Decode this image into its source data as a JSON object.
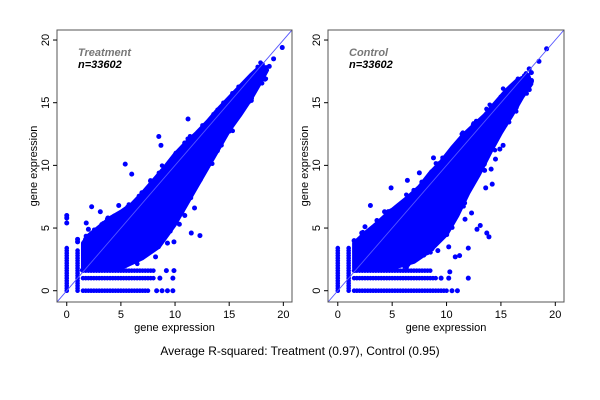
{
  "chart_data": [
    {
      "type": "scatter",
      "group_label": "Treatment",
      "n_label": "n=33602",
      "xlabel": "gene expression",
      "ylabel": "gene expression",
      "xlim": [
        -0.9,
        20.8
      ],
      "ylim": [
        -0.9,
        20.8
      ],
      "xticks": [
        0,
        5,
        10,
        15,
        20
      ],
      "yticks": [
        0,
        5,
        10,
        15,
        20
      ],
      "reference_line": "y = x",
      "point_color": "#0000ff",
      "line_color": "#5555ff",
      "dense_region": [
        [
          1.5,
          1.8
        ],
        [
          5,
          1.8
        ],
        [
          7,
          2.6
        ],
        [
          8.5,
          3.5
        ],
        [
          10,
          5.3
        ],
        [
          11,
          6.8
        ],
        [
          12,
          8.3
        ],
        [
          13,
          9.8
        ],
        [
          14,
          11.3
        ],
        [
          15,
          12.8
        ],
        [
          16,
          14
        ],
        [
          17,
          15.3
        ],
        [
          18,
          16.8
        ],
        [
          18.5,
          17.6
        ],
        [
          18,
          18
        ],
        [
          17,
          17.2
        ],
        [
          16,
          16.3
        ],
        [
          15,
          15.4
        ],
        [
          14,
          14.5
        ],
        [
          13,
          13.5
        ],
        [
          12,
          12.6
        ],
        [
          11,
          11.8
        ],
        [
          10,
          10.9
        ],
        [
          9,
          9.8
        ],
        [
          8,
          8.8
        ],
        [
          7,
          7.8
        ],
        [
          6,
          6.9
        ],
        [
          5,
          6.3
        ],
        [
          4,
          5.8
        ],
        [
          3,
          5.1
        ],
        [
          2,
          4.4
        ],
        [
          1.5,
          3.8
        ]
      ],
      "floor_rows": [
        {
          "y": 0,
          "x_from": 1.5,
          "x_to": 7.6
        },
        {
          "y": 1.0,
          "x_from": 1.5,
          "x_to": 8.0
        },
        {
          "y": 1.6,
          "x_from": 1.5,
          "x_to": 8.0
        }
      ],
      "columns": [
        {
          "x": 0,
          "y_from": 0,
          "y_to": 3.6
        },
        {
          "x": 1,
          "y_from": 0,
          "y_to": 3.4
        }
      ],
      "points": [
        [
          0,
          5.4
        ],
        [
          0,
          5.8
        ],
        [
          0,
          6.0
        ],
        [
          1,
          4.1
        ],
        [
          1,
          3.9
        ],
        [
          1.8,
          5.4
        ],
        [
          2.3,
          6.7
        ],
        [
          2.0,
          4.9
        ],
        [
          3.1,
          6.3
        ],
        [
          3.8,
          5.8
        ],
        [
          4.8,
          6.8
        ],
        [
          5.4,
          10.1
        ],
        [
          6.0,
          9.3
        ],
        [
          8.5,
          12.3
        ],
        [
          8.7,
          11.6
        ],
        [
          11.2,
          13.7
        ],
        [
          12.1,
          9.8
        ],
        [
          12.8,
          10.0
        ],
        [
          11.8,
          6.6
        ],
        [
          12.3,
          4.4
        ],
        [
          11.5,
          4.6
        ],
        [
          10.5,
          7.5
        ],
        [
          10.9,
          6.0
        ],
        [
          10.4,
          5.3
        ],
        [
          9.6,
          8.0
        ],
        [
          9.3,
          6.6
        ],
        [
          8.9,
          4.9
        ],
        [
          9.3,
          3.8
        ],
        [
          9.9,
          3.9
        ],
        [
          8.2,
          2.7
        ],
        [
          9.2,
          1.6
        ],
        [
          9.9,
          1.6
        ],
        [
          9.8,
          1.0
        ],
        [
          8.6,
          1.0
        ],
        [
          9.8,
          0
        ],
        [
          9.3,
          0
        ],
        [
          8.8,
          0
        ],
        [
          8.3,
          0
        ],
        [
          15.8,
          14.2
        ],
        [
          16.5,
          15.2
        ],
        [
          17.0,
          15.8
        ],
        [
          17.6,
          17.0
        ],
        [
          18.4,
          17.8
        ],
        [
          18.7,
          17.9
        ],
        [
          19.1,
          18.5
        ],
        [
          19.9,
          19.4
        ],
        [
          13.5,
          12.2
        ],
        [
          14.3,
          12.8
        ]
      ]
    },
    {
      "type": "scatter",
      "group_label": "Control",
      "n_label": "n=33602",
      "xlabel": "gene expression",
      "ylabel": "gene expression",
      "xlim": [
        -0.9,
        20.8
      ],
      "ylim": [
        -0.9,
        20.8
      ],
      "xticks": [
        0,
        5,
        10,
        15,
        20
      ],
      "yticks": [
        0,
        5,
        10,
        15,
        20
      ],
      "reference_line": "y = x",
      "point_color": "#0000ff",
      "line_color": "#5555ff",
      "dense_region": [
        [
          1.5,
          1.8
        ],
        [
          5,
          1.8
        ],
        [
          7,
          2.3
        ],
        [
          8.5,
          3.2
        ],
        [
          10,
          4.5
        ],
        [
          11,
          6.0
        ],
        [
          12,
          7.8
        ],
        [
          13,
          9.3
        ],
        [
          14,
          11.0
        ],
        [
          15,
          12.6
        ],
        [
          16,
          14.0
        ],
        [
          17,
          15.5
        ],
        [
          17.8,
          16.5
        ],
        [
          17.5,
          17.2
        ],
        [
          16.5,
          16.8
        ],
        [
          15.5,
          16.0
        ],
        [
          14.5,
          15.0
        ],
        [
          13.5,
          14.0
        ],
        [
          12.5,
          13.2
        ],
        [
          11.5,
          12.4
        ],
        [
          10.5,
          11.4
        ],
        [
          9.5,
          10.3
        ],
        [
          8.5,
          9.4
        ],
        [
          7.5,
          8.3
        ],
        [
          6.5,
          7.5
        ],
        [
          5.5,
          6.8
        ],
        [
          4.5,
          6.1
        ],
        [
          3.5,
          5.3
        ],
        [
          2.5,
          4.6
        ],
        [
          1.5,
          3.8
        ]
      ],
      "floor_rows": [
        {
          "y": 0,
          "x_from": 1.5,
          "x_to": 10.0
        },
        {
          "y": 1.0,
          "x_from": 1.5,
          "x_to": 9.0
        },
        {
          "y": 1.6,
          "x_from": 1.5,
          "x_to": 8.5
        }
      ],
      "columns": [
        {
          "x": 0,
          "y_from": 0,
          "y_to": 3.5
        },
        {
          "x": 1,
          "y_from": 0,
          "y_to": 3.5
        }
      ],
      "points": [
        [
          1.5,
          4.0
        ],
        [
          2.2,
          4.6
        ],
        [
          2.5,
          5.1
        ],
        [
          3.0,
          6.8
        ],
        [
          3.6,
          5.6
        ],
        [
          4.9,
          8.2
        ],
        [
          4.3,
          6.3
        ],
        [
          6.4,
          8.8
        ],
        [
          7.5,
          9.4
        ],
        [
          8.8,
          10.6
        ],
        [
          10.5,
          11.0
        ],
        [
          14.1,
          9.7
        ],
        [
          14.5,
          10.5
        ],
        [
          14.9,
          11.3
        ],
        [
          15.2,
          11.6
        ],
        [
          14.2,
          8.5
        ],
        [
          13.6,
          8.2
        ],
        [
          13.1,
          5.2
        ],
        [
          13.7,
          4.6
        ],
        [
          13.9,
          4.3
        ],
        [
          12.8,
          4.9
        ],
        [
          12.0,
          3.4
        ],
        [
          12.0,
          1.0
        ],
        [
          11.0,
          0
        ],
        [
          10.5,
          0
        ],
        [
          10.3,
          1.5
        ],
        [
          11.2,
          2.8
        ],
        [
          11.7,
          5.7
        ],
        [
          11.0,
          7.5
        ],
        [
          12.3,
          6.2
        ],
        [
          12.5,
          8.8
        ],
        [
          12.8,
          10.5
        ],
        [
          13.5,
          9.6
        ],
        [
          14.3,
          12.7
        ],
        [
          13.3,
          11.0
        ],
        [
          9.8,
          5.0
        ],
        [
          9.2,
          3.2
        ],
        [
          10.2,
          3.5
        ],
        [
          10.8,
          2.7
        ],
        [
          9.5,
          1.0
        ],
        [
          10.2,
          1.0
        ],
        [
          16.0,
          14.6
        ],
        [
          16.8,
          16.0
        ],
        [
          17.6,
          17.7
        ],
        [
          17.8,
          17.4
        ],
        [
          18.5,
          18.3
        ],
        [
          19.2,
          19.3
        ]
      ]
    }
  ],
  "caption": "Average R-squared: Treatment (0.97), Control (0.95)"
}
